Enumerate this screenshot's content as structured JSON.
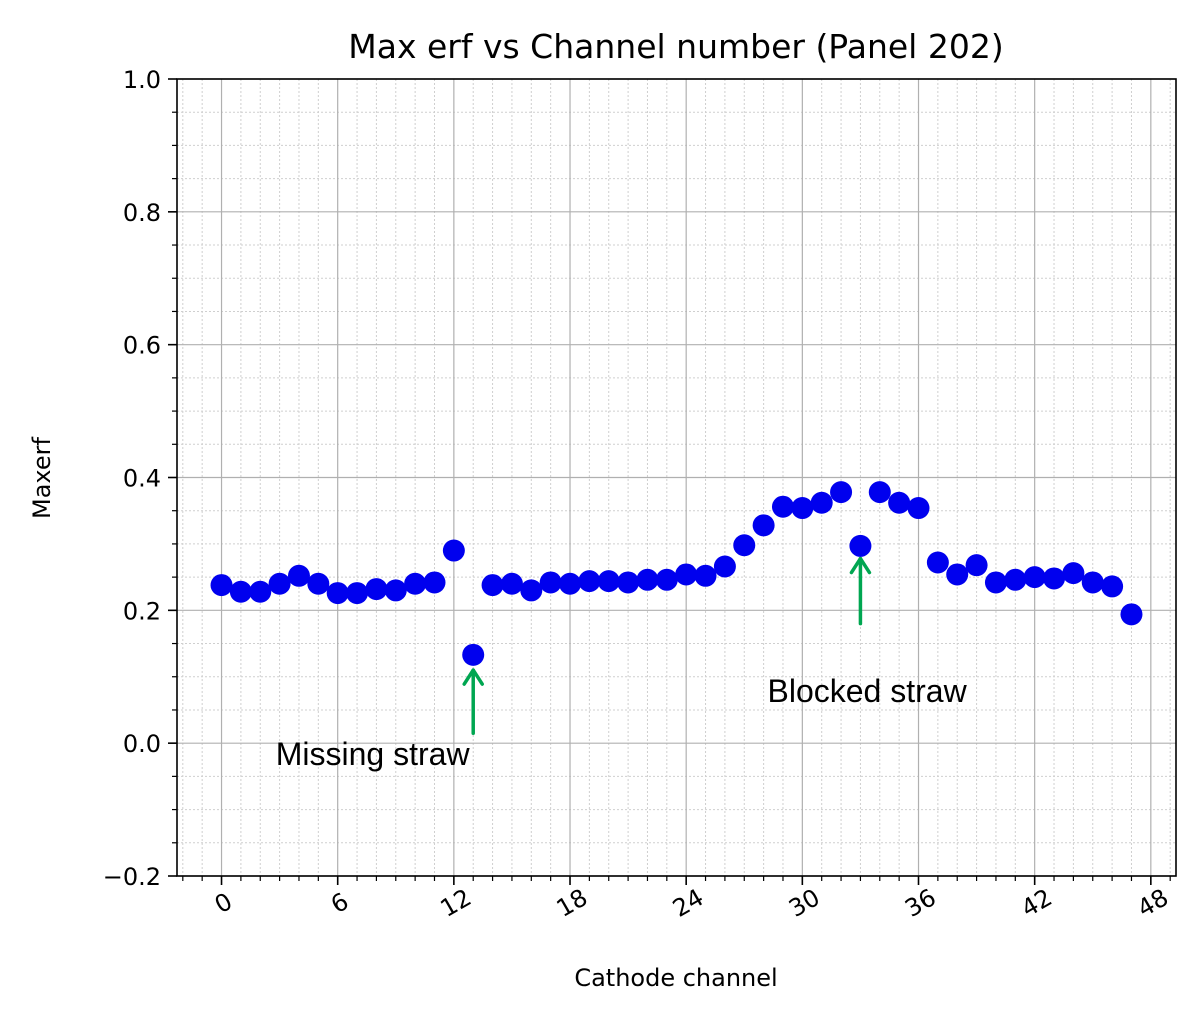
{
  "chart_data": {
    "type": "scatter",
    "title": "Max erf vs Channel number (Panel 202)",
    "xlabel": "Cathode channel",
    "ylabel": "Maxerf",
    "xlim": [
      -2.3,
      49.3
    ],
    "ylim": [
      -0.2,
      1.0
    ],
    "xticks": [
      0,
      6,
      12,
      18,
      24,
      30,
      36,
      42,
      48
    ],
    "xtick_labels": [
      "0",
      "6",
      "12",
      "18",
      "24",
      "30",
      "36",
      "42",
      "48"
    ],
    "xtick_rotation_deg": 30,
    "yticks": [
      -0.2,
      0.0,
      0.2,
      0.4,
      0.6,
      0.8,
      1.0
    ],
    "ytick_labels": [
      "−0.2",
      "0.0",
      "0.2",
      "0.4",
      "0.6",
      "0.8",
      "1.0"
    ],
    "grid": "major and minor",
    "marker_color": "#0000ee",
    "annotation_color": "#00a651",
    "x": [
      0,
      1,
      2,
      3,
      4,
      5,
      6,
      7,
      8,
      9,
      10,
      11,
      12,
      13,
      14,
      15,
      16,
      17,
      18,
      19,
      20,
      21,
      22,
      23,
      24,
      25,
      26,
      27,
      28,
      29,
      30,
      31,
      32,
      33,
      34,
      35,
      36,
      37,
      38,
      39,
      40,
      41,
      42,
      43,
      44,
      45,
      46,
      47
    ],
    "y": [
      0.238,
      0.228,
      0.228,
      0.24,
      0.252,
      0.24,
      0.226,
      0.226,
      0.232,
      0.23,
      0.24,
      0.242,
      0.29,
      0.133,
      0.238,
      0.24,
      0.23,
      0.242,
      0.24,
      0.244,
      0.244,
      0.242,
      0.246,
      0.246,
      0.254,
      0.252,
      0.266,
      0.298,
      0.328,
      0.356,
      0.354,
      0.362,
      0.378,
      0.297,
      0.378,
      0.362,
      0.354,
      0.272,
      0.254,
      0.268,
      0.242,
      0.246,
      0.25,
      0.248,
      0.256,
      0.242,
      0.236,
      0.194
    ],
    "annotations": [
      {
        "text": "Missing straw",
        "x": 2.8,
        "y": -0.033,
        "arrow_from": [
          13,
          0.015
        ],
        "arrow_to": [
          13,
          0.11
        ]
      },
      {
        "text": "Blocked straw",
        "x": 28.2,
        "y": 0.062,
        "arrow_from": [
          33,
          0.18
        ],
        "arrow_to": [
          33,
          0.278
        ]
      }
    ]
  }
}
